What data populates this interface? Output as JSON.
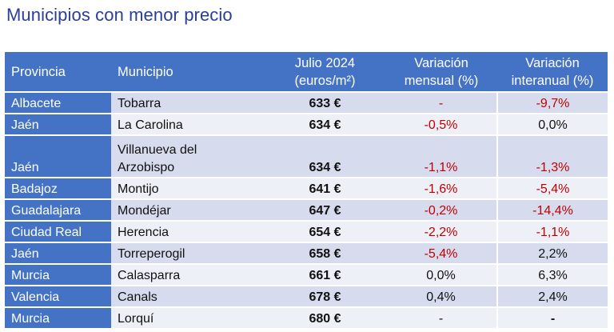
{
  "title": "Municipios con menor precio",
  "headers": {
    "provincia": "Provincia",
    "municipio": "Municipio",
    "price_l1": "Julio 2024",
    "price_l2": "(euros/m²)",
    "monthly_l1": "Variación",
    "monthly_l2": "mensual (%)",
    "annual_l1": "Variación",
    "annual_l2": "interanual (%)"
  },
  "rows": [
    {
      "provincia": "Albacete",
      "municipio": "Tobarra",
      "precio": "633 €",
      "mensual": "-",
      "interanual": "-9,7%"
    },
    {
      "provincia": "Jaén",
      "municipio": "La Carolina",
      "precio": "634 €",
      "mensual": "-0,5%",
      "interanual": "0,0%"
    },
    {
      "provincia": "Jaén",
      "municipio_l1": "Villanueva del",
      "municipio_l2": "Arzobispo",
      "precio": "634 €",
      "mensual": "-1,1%",
      "interanual": "-1,3%"
    },
    {
      "provincia": "Badajoz",
      "municipio": "Montijo",
      "precio": "641 €",
      "mensual": "-1,6%",
      "interanual": "-5,4%"
    },
    {
      "provincia": "Guadalajara",
      "municipio": "Mondéjar",
      "precio": "647 €",
      "mensual": "-0,2%",
      "interanual": "-14,4%"
    },
    {
      "provincia": "Ciudad Real",
      "municipio": "Herencia",
      "precio": "654 €",
      "mensual": "-2,2%",
      "interanual": "-1,1%"
    },
    {
      "provincia": "Jaén",
      "municipio": "Torreperogil",
      "precio": "658 €",
      "mensual": "-5,4%",
      "interanual": "2,2%"
    },
    {
      "provincia": "Murcia",
      "municipio": "Calasparra",
      "precio": "661 €",
      "mensual": "0,0%",
      "interanual": "6,3%"
    },
    {
      "provincia": "Valencia",
      "municipio": "Canals",
      "precio": "678 €",
      "mensual": "0,4%",
      "interanual": "2,4%"
    },
    {
      "provincia": "Murcia",
      "municipio": "Lorquí",
      "precio": "680 €",
      "mensual": "-",
      "interanual": "-"
    }
  ],
  "colors": {
    "header_bg": "#4472c4",
    "row_dark": "#d6dcee",
    "row_light": "#eef0f7",
    "negative": "#c00000",
    "title": "#2a3d9a"
  }
}
